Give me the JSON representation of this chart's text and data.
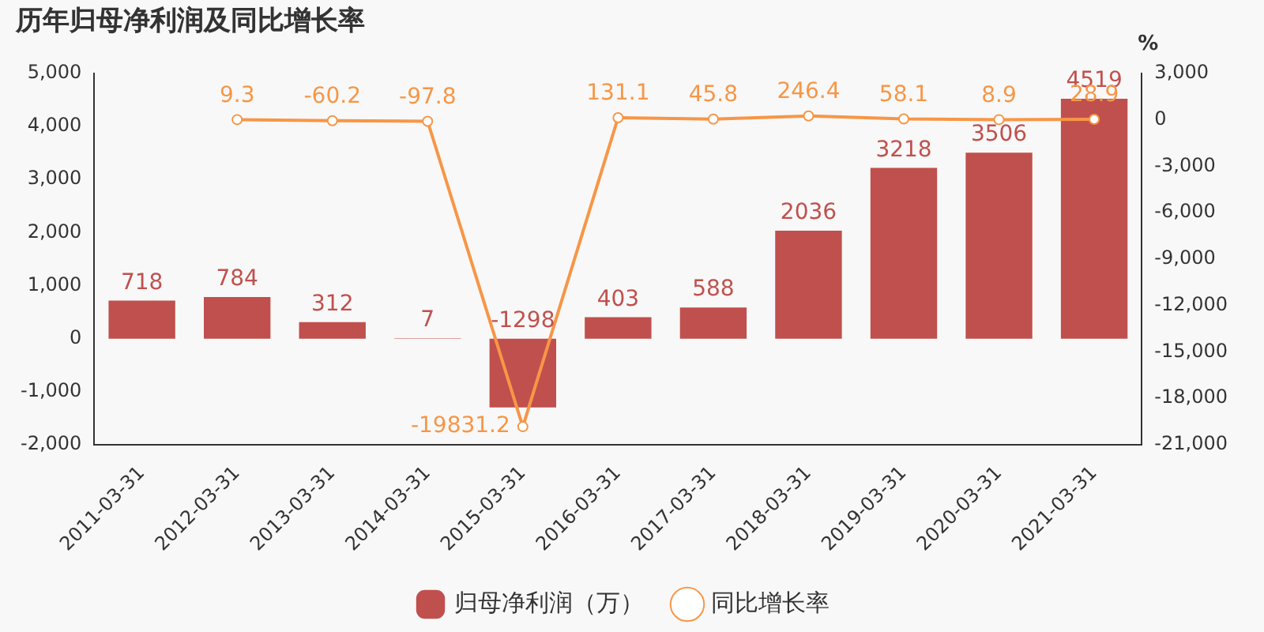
{
  "chart_data": {
    "type": "bar",
    "title": "历年归母净利润及同比增长率",
    "y2label": "%",
    "categories": [
      "2011-03-31",
      "2012-03-31",
      "2013-03-31",
      "2014-03-31",
      "2015-03-31",
      "2016-03-31",
      "2017-03-31",
      "2018-03-31",
      "2019-03-31",
      "2020-03-31",
      "2021-03-31"
    ],
    "series": [
      {
        "name": "归母净利润（万）",
        "color": "#c0504d",
        "values": [
          718,
          784,
          312,
          7,
          -1298,
          403,
          588,
          2036,
          3218,
          3506,
          4519
        ]
      },
      {
        "name": "同比增长率",
        "type": "line",
        "axis": "y2",
        "color": "#f79646",
        "marker": "circle",
        "values": [
          null,
          9.3,
          -60.2,
          -97.8,
          -19831.2,
          131.1,
          45.8,
          246.4,
          58.1,
          8.9,
          28.9
        ]
      }
    ],
    "ylim": [
      -2000,
      5000
    ],
    "yticks": [
      {
        "value": -2000,
        "label": "-2,000"
      },
      {
        "value": -1000,
        "label": "-1,000"
      },
      0,
      {
        "value": 1000,
        "label": "1,000"
      },
      {
        "value": 2000,
        "label": "2,000"
      },
      {
        "value": 3000,
        "label": "3,000"
      },
      {
        "value": 4000,
        "label": "4,000"
      },
      {
        "value": 5000,
        "label": "5,000"
      }
    ],
    "y2lim": [
      -21000,
      3000
    ],
    "y2ticks": [
      {
        "value": -21000,
        "label": "-21,000"
      },
      {
        "value": -18000,
        "label": "-18,000"
      },
      {
        "value": -15000,
        "label": "-15,000"
      },
      {
        "value": -12000,
        "label": "-12,000"
      },
      {
        "value": -9000,
        "label": "-9,000"
      },
      {
        "value": -6000,
        "label": "-6,000"
      },
      {
        "value": -3000,
        "label": "-3,000"
      },
      0,
      {
        "value": 3000,
        "label": "3,000"
      }
    ],
    "data_labels": true,
    "grid": false,
    "legend": "bottom"
  }
}
